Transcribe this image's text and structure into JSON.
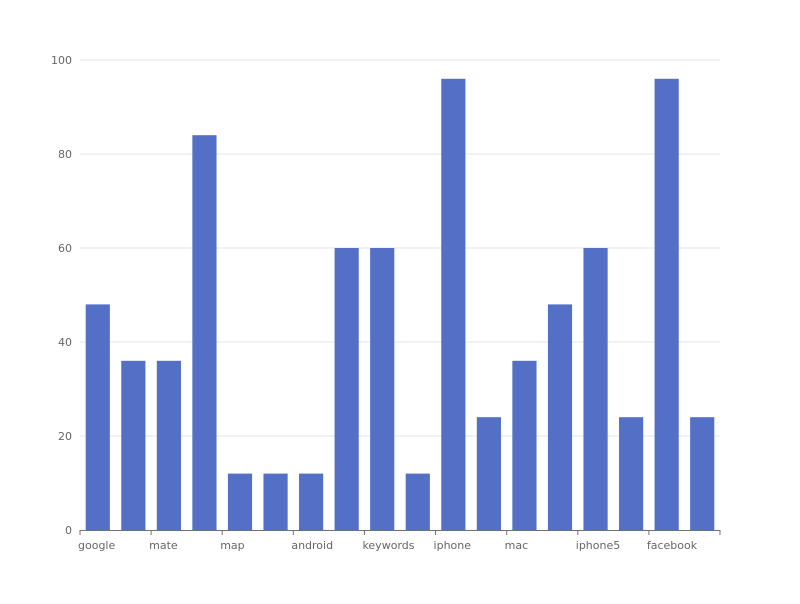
{
  "chart_data": {
    "type": "bar",
    "categories": [
      "google",
      "",
      "mate",
      "",
      "map",
      "",
      "android",
      "",
      "keywords",
      "",
      "iphone",
      "",
      "mac",
      "",
      "iphone5",
      "",
      "facebook",
      ""
    ],
    "values": [
      48,
      36,
      36,
      84,
      12,
      12,
      12,
      60,
      60,
      12,
      96,
      24,
      36,
      48,
      60,
      24,
      96,
      24
    ],
    "y_ticks": [
      0,
      20,
      40,
      60,
      80,
      100
    ],
    "ylim": [
      0,
      100
    ],
    "grid": true,
    "colors": {
      "bar": "#5470c6",
      "grid": "#e6e6e6",
      "axis": "#6e7079",
      "text": "#666666"
    }
  }
}
